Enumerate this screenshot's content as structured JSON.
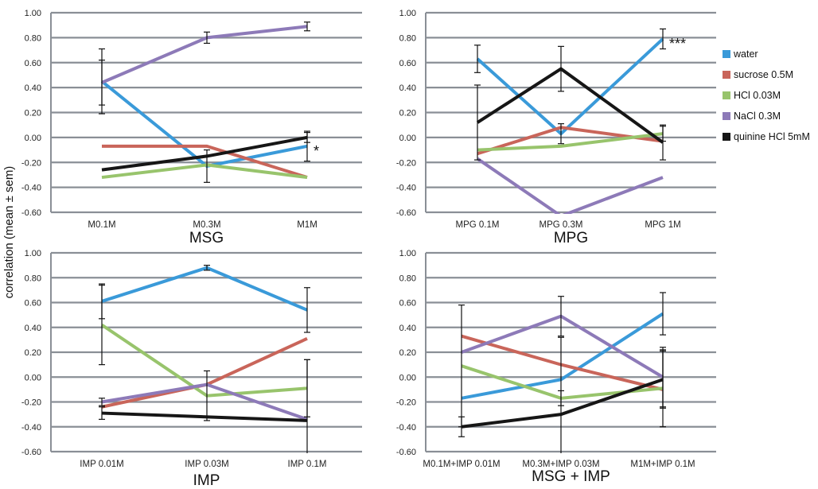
{
  "figure": {
    "ylabel": "correlation (mean ± sem)",
    "yticks": [
      "1.00",
      "0.80",
      "0.60",
      "0.40",
      "0.20",
      "0.00",
      "-0.20",
      "-0.40",
      "-0.60"
    ],
    "legend": [
      {
        "name": "water",
        "color": "#3a9ad9"
      },
      {
        "name": "sucrose 0.5M",
        "color": "#c9655a"
      },
      {
        "name": "HCl 0.03M",
        "color": "#98c46c"
      },
      {
        "name": "NaCl 0.3M",
        "color": "#8d7ab8"
      },
      {
        "name": "quinine HCl 5mM",
        "color": "#161616"
      }
    ]
  },
  "chart_data": [
    {
      "type": "line",
      "title": "MSG",
      "categories": [
        "M0.1M",
        "M0.3M",
        "M1M"
      ],
      "ylim": [
        -0.6,
        1.0
      ],
      "series": [
        {
          "name": "water",
          "values": [
            0.45,
            -0.23,
            -0.07
          ],
          "err": [
            0.26,
            0.13,
            0.12
          ]
        },
        {
          "name": "sucrose 0.5M",
          "values": [
            -0.07,
            -0.07,
            -0.32
          ],
          "err": [
            null,
            null,
            null
          ]
        },
        {
          "name": "HCl 0.03M",
          "values": [
            -0.32,
            -0.22,
            -0.32
          ],
          "err": [
            null,
            null,
            null
          ]
        },
        {
          "name": "NaCl 0.3M",
          "values": [
            0.44,
            0.8,
            0.89
          ],
          "err": [
            0.18,
            0.045,
            0.035
          ]
        },
        {
          "name": "quinine HCl 5mM",
          "values": [
            -0.26,
            -0.15,
            0.0
          ],
          "err": [
            null,
            null,
            0.04
          ]
        }
      ],
      "annotations": [
        {
          "text": "*",
          "category": 2,
          "y": -0.07
        }
      ]
    },
    {
      "type": "line",
      "title": "MPG",
      "categories": [
        "MPG 0.1M",
        "MPG 0.3M",
        "MPG 1M"
      ],
      "ylim": [
        -0.6,
        1.0
      ],
      "series": [
        {
          "name": "water",
          "values": [
            0.63,
            0.03,
            0.79
          ],
          "err": [
            0.11,
            0.08,
            0.08
          ]
        },
        {
          "name": "sucrose 0.5M",
          "values": [
            -0.13,
            0.08,
            -0.03
          ],
          "err": [
            null,
            null,
            null
          ]
        },
        {
          "name": "HCl 0.03M",
          "values": [
            -0.1,
            -0.07,
            0.03
          ],
          "err": [
            null,
            null,
            0.06
          ]
        },
        {
          "name": "NaCl 0.3M",
          "values": [
            -0.17,
            -0.63,
            -0.32
          ],
          "err": [
            null,
            null,
            null
          ]
        },
        {
          "name": "quinine HCl 5mM",
          "values": [
            0.12,
            0.55,
            -0.04
          ],
          "err": [
            0.3,
            0.18,
            0.14
          ]
        }
      ],
      "annotations": [
        {
          "text": "***",
          "category": 2,
          "y": 0.79
        }
      ]
    },
    {
      "type": "line",
      "title": "IMP",
      "categories": [
        "IMP 0.01M",
        "IMP 0.03M",
        "IMP 0.1M"
      ],
      "ylim": [
        -0.6,
        1.0
      ],
      "series": [
        {
          "name": "water",
          "values": [
            0.61,
            0.88,
            0.54
          ],
          "err": [
            0.14,
            0.02,
            0.18
          ]
        },
        {
          "name": "sucrose 0.5M",
          "values": [
            -0.24,
            -0.06,
            0.31
          ],
          "err": [
            null,
            null,
            null
          ]
        },
        {
          "name": "HCl 0.03M",
          "values": [
            0.42,
            -0.15,
            -0.09
          ],
          "err": [
            0.32,
            0.2,
            0.23
          ]
        },
        {
          "name": "NaCl 0.3M",
          "values": [
            -0.2,
            -0.06,
            -0.34
          ],
          "err": [
            0.03,
            null,
            null
          ]
        },
        {
          "name": "quinine HCl 5mM",
          "values": [
            -0.29,
            null,
            -0.35
          ],
          "err": [
            0.05,
            null,
            0.49
          ]
        }
      ],
      "annotations": []
    },
    {
      "type": "line",
      "title": "MSG + IMP",
      "categories": [
        "M0.1M+IMP 0.01M",
        "M0.3M+IMP 0.03M",
        "M1M+IMP 0.1M"
      ],
      "ylim": [
        -0.6,
        1.0
      ],
      "series": [
        {
          "name": "water",
          "values": [
            -0.17,
            -0.02,
            0.51
          ],
          "err": [
            null,
            null,
            0.17
          ]
        },
        {
          "name": "sucrose 0.5M",
          "values": [
            0.33,
            0.1,
            -0.1
          ],
          "err": [
            null,
            null,
            null
          ]
        },
        {
          "name": "HCl 0.03M",
          "values": [
            0.09,
            -0.17,
            -0.09
          ],
          "err": [
            0.49,
            0.06,
            0.31
          ]
        },
        {
          "name": "NaCl 0.3M",
          "values": [
            0.2,
            0.49,
            0.0
          ],
          "err": [
            null,
            0.16,
            0.24
          ]
        },
        {
          "name": "quinine HCl 5mM",
          "values": [
            -0.4,
            -0.3,
            -0.02
          ],
          "err": [
            0.08,
            0.62,
            0.23
          ]
        }
      ],
      "annotations": []
    }
  ]
}
